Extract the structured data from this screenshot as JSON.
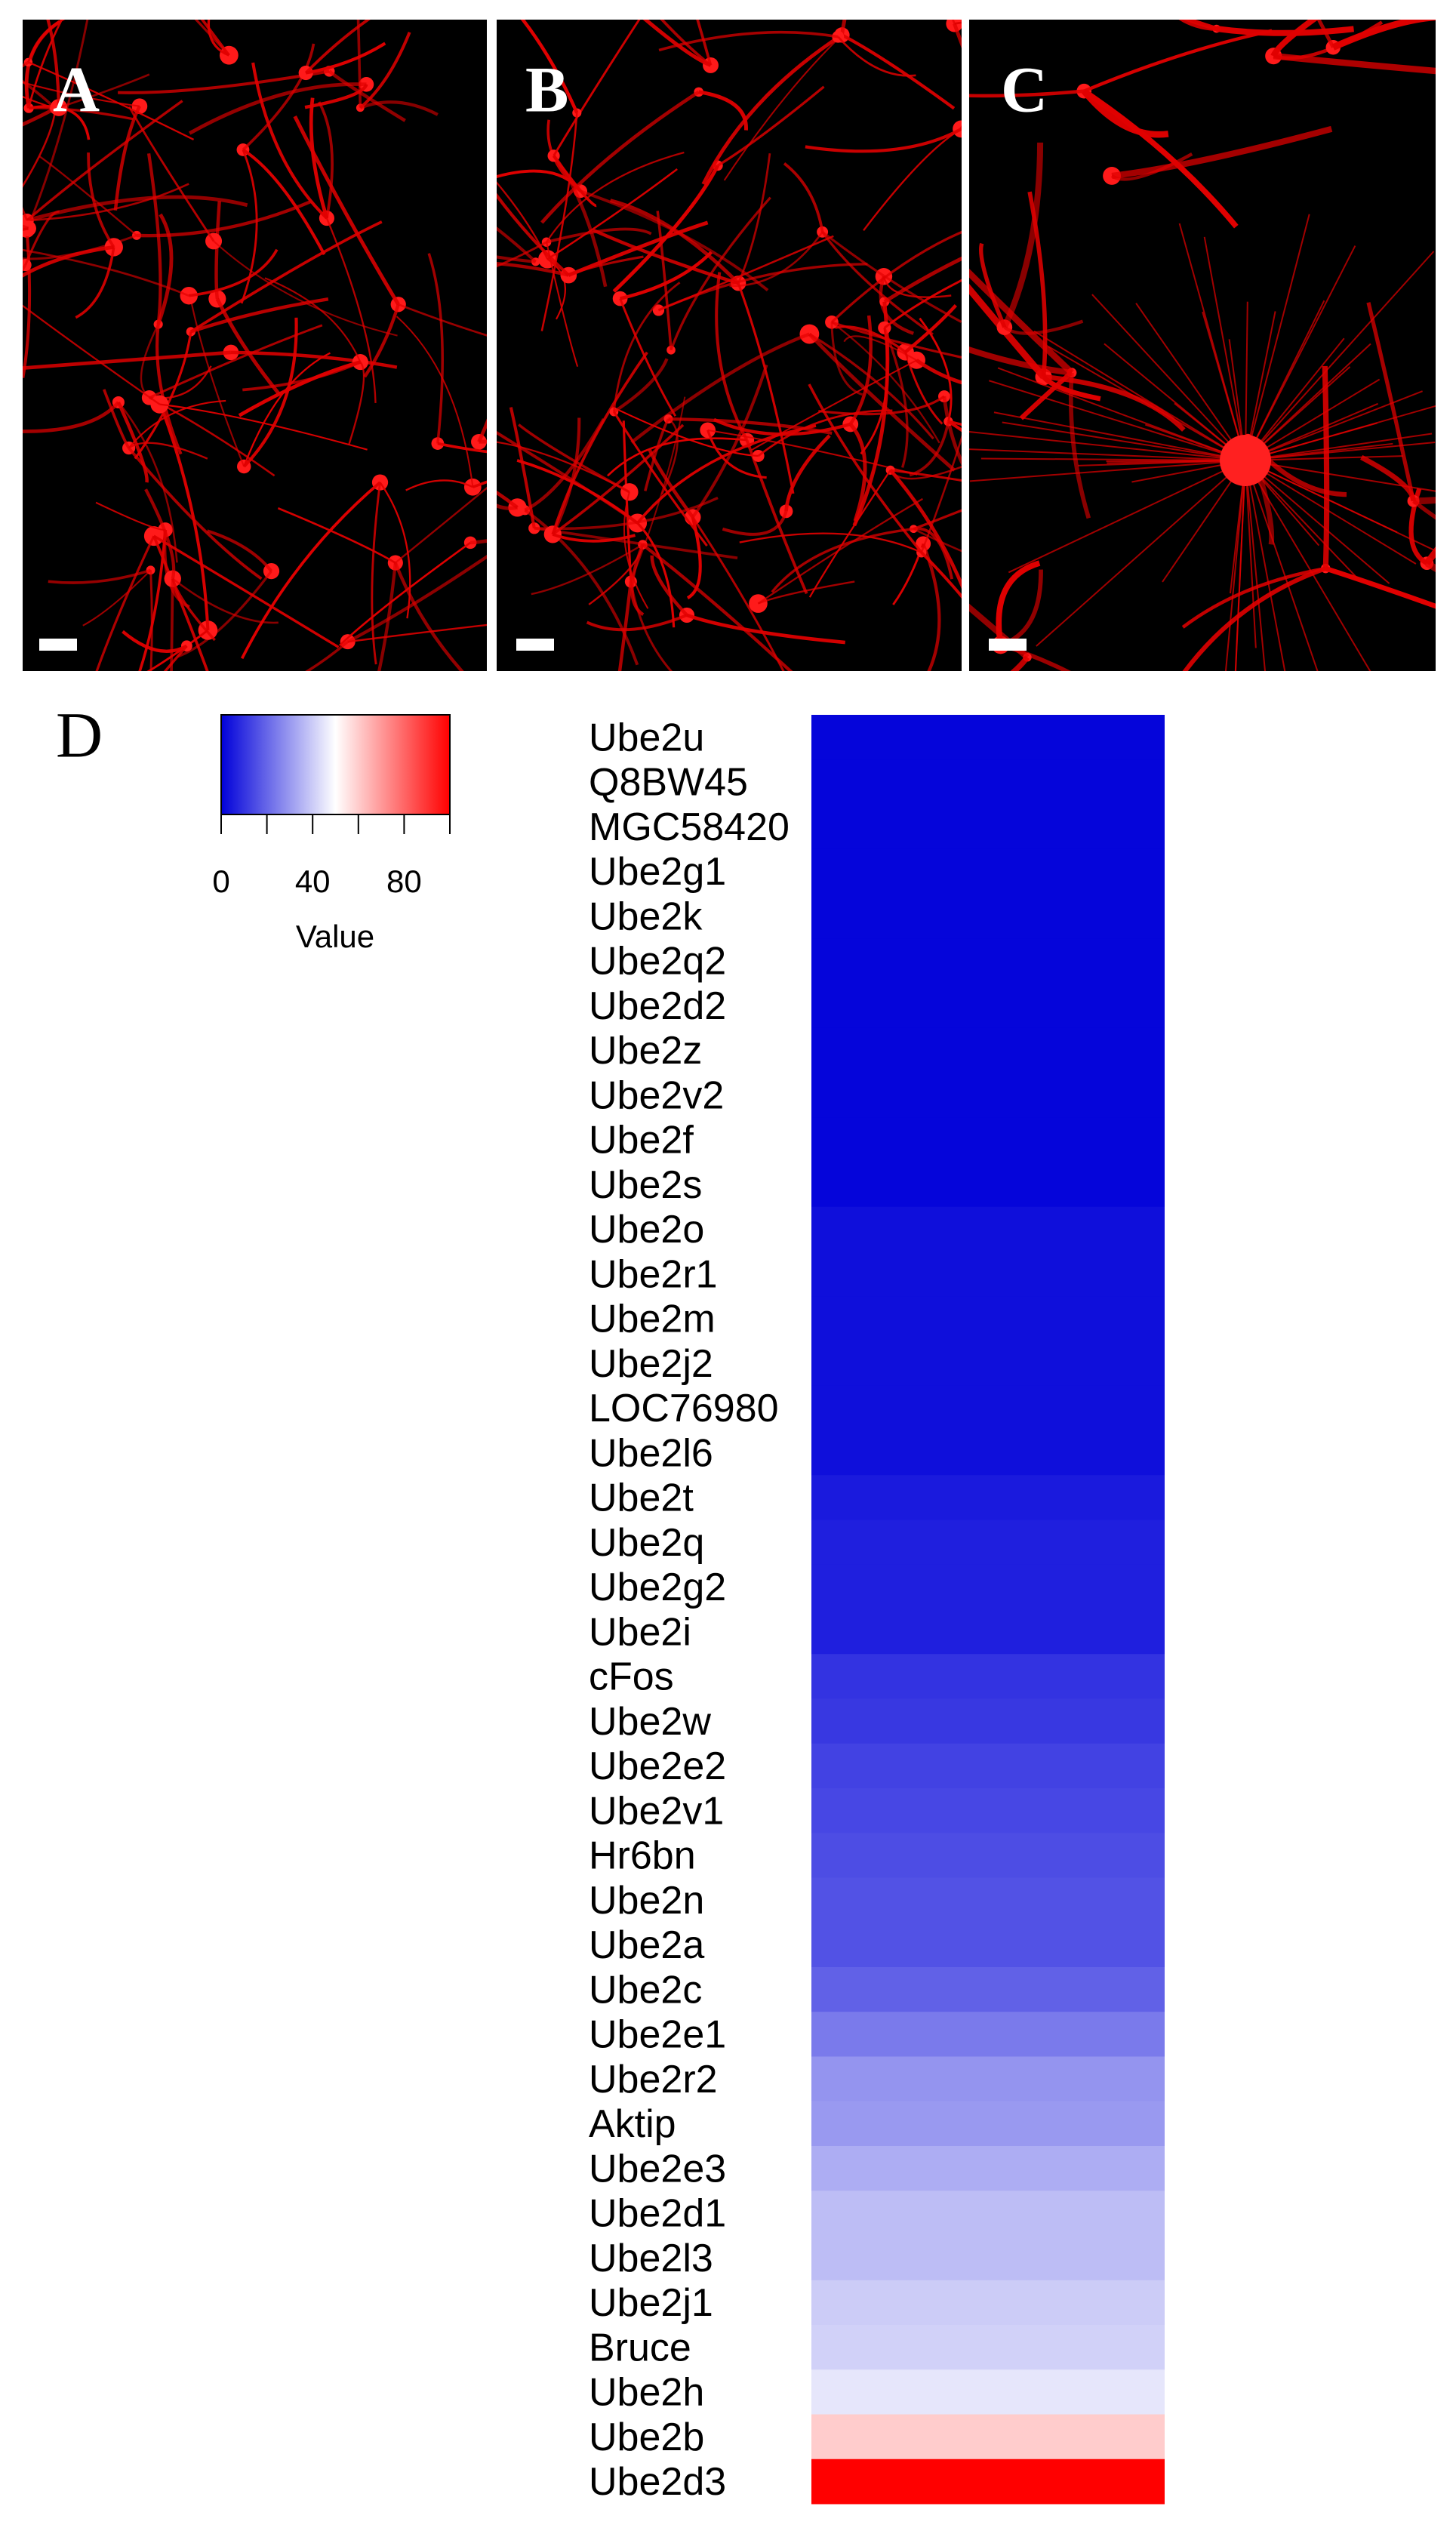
{
  "panels": {
    "labels": [
      "A",
      "B",
      "C"
    ]
  },
  "chart_data": {
    "type": "heatmap",
    "panel_label": "D",
    "legend_title": "Value",
    "categories": [
      "Ube2u",
      "Q8BW45",
      "MGC58420",
      "Ube2g1",
      "Ube2k",
      "Ube2q2",
      "Ube2d2",
      "Ube2z",
      "Ube2v2",
      "Ube2f",
      "Ube2s",
      "Ube2o",
      "Ube2r1",
      "Ube2m",
      "Ube2j2",
      "LOC76980",
      "Ube2l6",
      "Ube2t",
      "Ube2q",
      "Ube2g2",
      "Ube2i",
      "cFos",
      "Ube2w",
      "Ube2e2",
      "Ube2v1",
      "Hr6bn",
      "Ube2n",
      "Ube2a",
      "Ube2c",
      "Ube2e1",
      "Ube2r2",
      "Aktip",
      "Ube2e3",
      "Ube2d1",
      "Ube2l3",
      "Ube2j1",
      "Bruce",
      "Ube2h",
      "Ube2b",
      "Ube2d3"
    ],
    "values": [
      1,
      1,
      1,
      1,
      1,
      1,
      1,
      1,
      1,
      1,
      1,
      3,
      3,
      3,
      3,
      3,
      3,
      5,
      6,
      6,
      6,
      10,
      11,
      13,
      14,
      15,
      16,
      16,
      19,
      24,
      29,
      30,
      34,
      37,
      37,
      40,
      41,
      45,
      60,
      100
    ],
    "colors": [
      "#0000d9",
      "#ffffff",
      "#ff0000"
    ],
    "keylim": [
      0,
      100
    ],
    "keyticks": [
      0,
      40,
      80
    ],
    "key_minor_ticks": [
      20,
      60,
      100
    ]
  }
}
